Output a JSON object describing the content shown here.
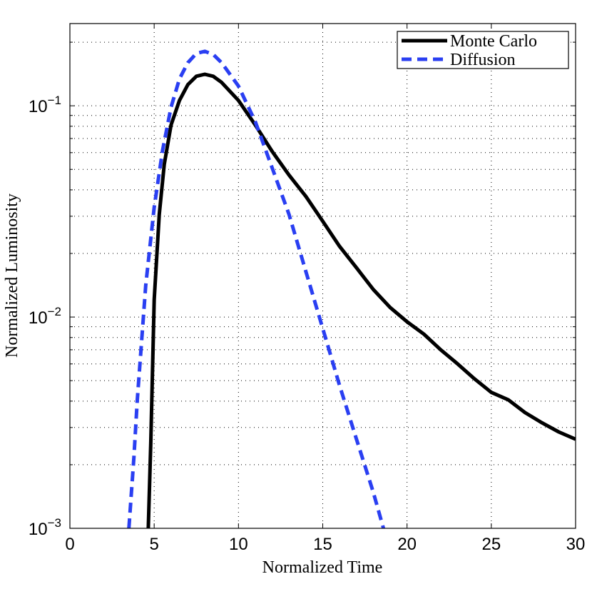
{
  "chart_data": {
    "type": "line",
    "xlabel": "Normalized Time",
    "ylabel": "Normalized Luminosity",
    "log_y": true,
    "grid": true,
    "legend": "upper right",
    "xlim": [
      0,
      30
    ],
    "xticks": [
      0,
      5,
      10,
      15,
      20,
      25,
      30
    ],
    "ylim": [
      0.001,
      0.245
    ],
    "yticks": [
      {
        "value": 0.001,
        "label": "10−3"
      },
      {
        "value": 0.01,
        "label": "10−2"
      },
      {
        "value": 0.1,
        "label": "10−1"
      }
    ],
    "yminorticks": [
      0.002,
      0.003,
      0.004,
      0.005,
      0.006,
      0.007,
      0.008,
      0.009,
      0.02,
      0.03,
      0.04,
      0.05,
      0.06,
      0.07,
      0.08,
      0.09,
      0.2
    ],
    "series": [
      {
        "name": "Monte Carlo",
        "color": "#000000",
        "dash": false,
        "x": [
          4.65,
          4.8,
          5.0,
          5.3,
          5.6,
          6.0,
          6.5,
          7.0,
          7.5,
          8.0,
          8.5,
          9,
          10,
          11,
          12,
          13,
          14,
          15,
          16,
          17,
          18,
          19,
          20,
          21,
          22,
          23,
          24,
          25,
          26,
          27,
          28,
          29,
          30
        ],
        "values": [
          0.001,
          0.00254,
          0.0121,
          0.0306,
          0.0528,
          0.081,
          0.106,
          0.126,
          0.138,
          0.141,
          0.138,
          0.129,
          0.106,
          0.081,
          0.0608,
          0.047,
          0.0372,
          0.0284,
          0.0216,
          0.0171,
          0.0135,
          0.0111,
          0.0095,
          0.0083,
          0.007,
          0.006,
          0.0051,
          0.0044,
          0.00406,
          0.00353,
          0.00316,
          0.00286,
          0.00264
        ]
      },
      {
        "name": "Diffusion",
        "color": "#2a3ff2",
        "dash": true,
        "x": [
          3.5,
          3.8,
          4.0,
          4.5,
          5.0,
          5.5,
          6.0,
          6.5,
          7.0,
          7.5,
          8.0,
          8.5,
          9,
          10,
          11,
          12,
          13,
          14,
          15,
          16,
          17,
          18,
          18.6
        ],
        "values": [
          0.001,
          0.00218,
          0.00406,
          0.0141,
          0.0331,
          0.0617,
          0.0984,
          0.134,
          0.16,
          0.177,
          0.181,
          0.175,
          0.16,
          0.124,
          0.084,
          0.0508,
          0.0306,
          0.0164,
          0.00883,
          0.00474,
          0.00264,
          0.00148,
          0.001
        ]
      }
    ]
  }
}
